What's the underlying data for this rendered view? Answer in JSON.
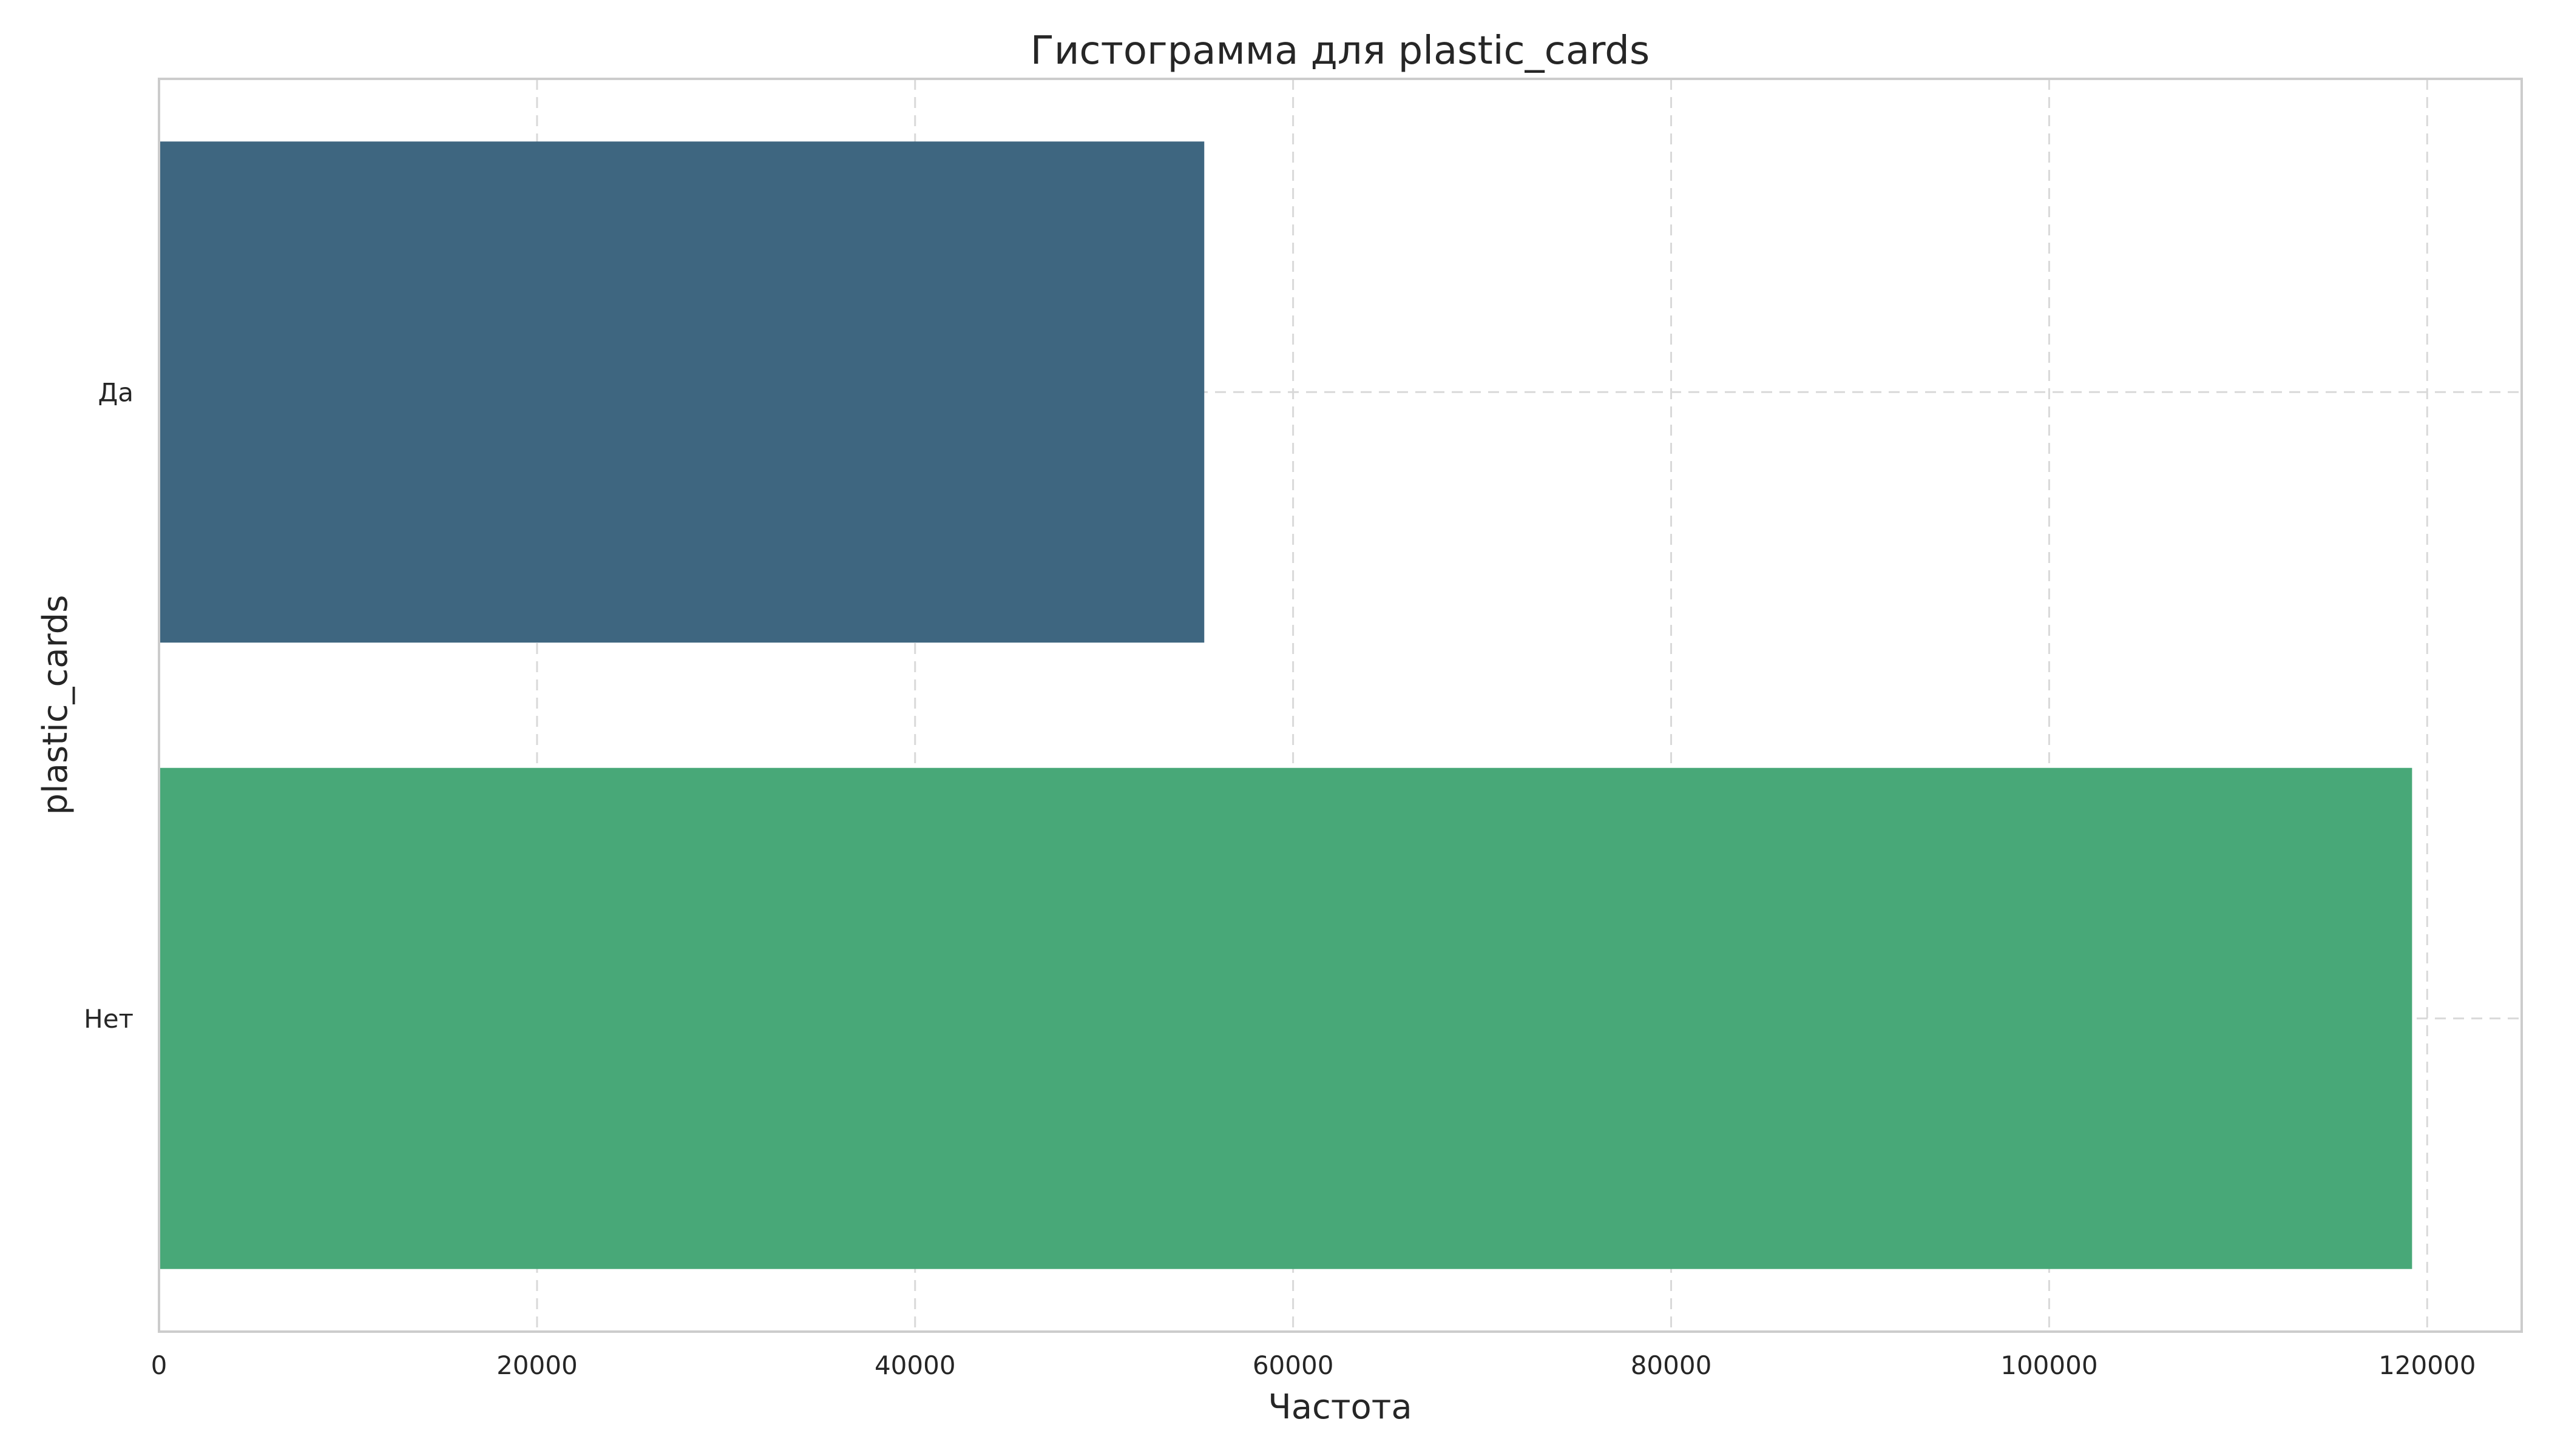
{
  "chart_data": {
    "type": "bar",
    "orientation": "horizontal",
    "title": "Гистограмма для plastic_cards",
    "xlabel": "Частота",
    "ylabel": "plastic_cards",
    "categories": [
      "Да",
      "Нет"
    ],
    "values": [
      55300,
      119200
    ],
    "colors": [
      "#3e6680",
      "#48a878"
    ],
    "xlim": [
      0,
      125000
    ],
    "xticks": [
      0,
      20000,
      40000,
      60000,
      80000,
      100000,
      120000
    ],
    "xtick_labels": [
      "0",
      "20000",
      "40000",
      "60000",
      "80000",
      "100000",
      "120000"
    ],
    "grid": true
  }
}
